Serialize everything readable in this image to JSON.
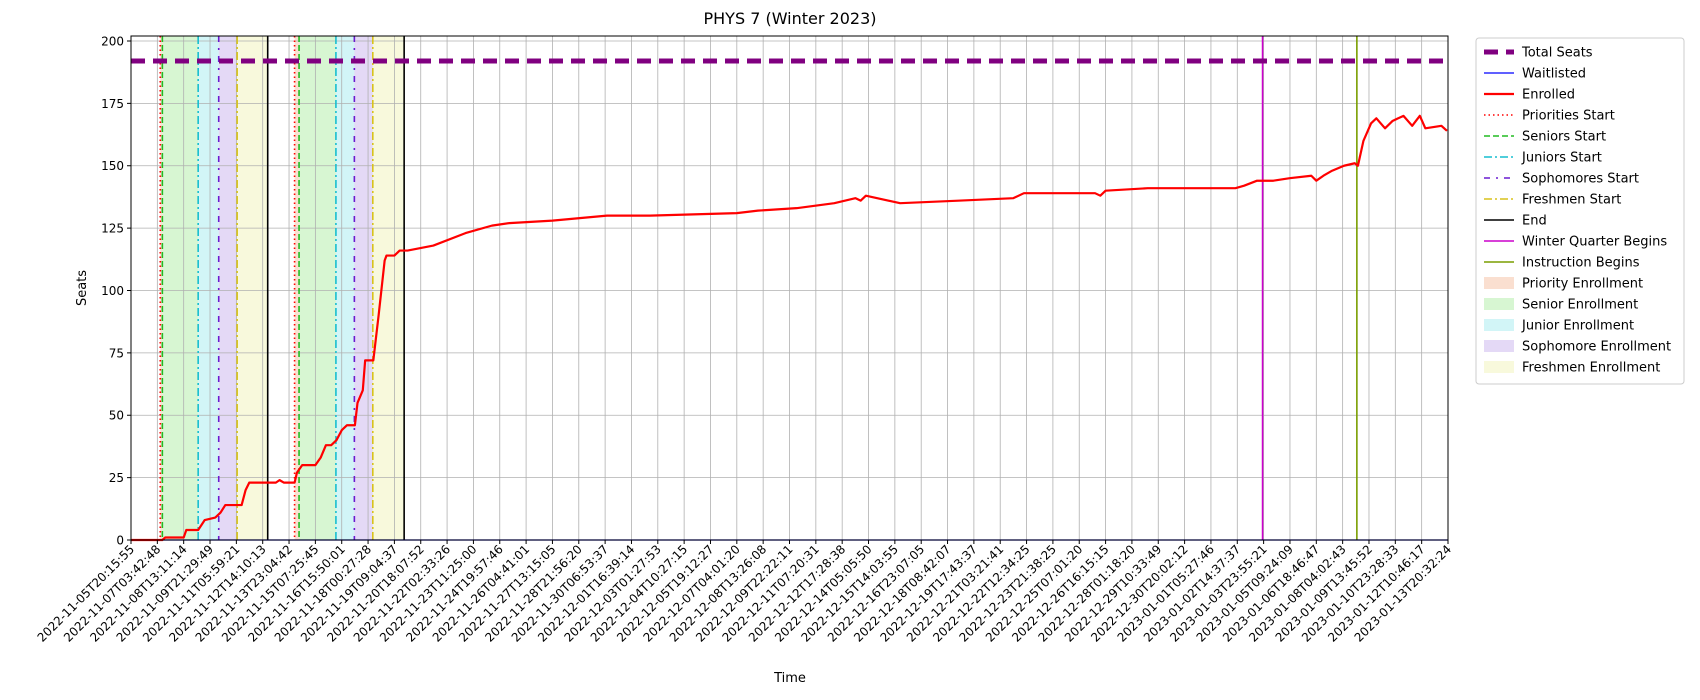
{
  "chart_data": {
    "type": "line",
    "title": "PHYS 7 (Winter 2023)",
    "x_label": "Time",
    "y_label": "Seats",
    "xlim": [
      0,
      50
    ],
    "ylim": [
      0,
      202
    ],
    "grid": true,
    "legend": "outside-upper-right",
    "yticks": [
      0,
      25,
      50,
      75,
      100,
      125,
      150,
      175,
      200
    ],
    "xticks": [
      {
        "value": 0,
        "label": "2022-11-05T20:15:55"
      },
      {
        "value": 1,
        "label": "2022-11-07T03:42:48"
      },
      {
        "value": 2,
        "label": "2022-11-08T13:11:14"
      },
      {
        "value": 3,
        "label": "2022-11-09T21:29:49"
      },
      {
        "value": 4,
        "label": "2022-11-11T05:59:21"
      },
      {
        "value": 5,
        "label": "2022-11-12T14:10:13"
      },
      {
        "value": 6,
        "label": "2022-11-13T23:04:42"
      },
      {
        "value": 7,
        "label": "2022-11-15T07:25:45"
      },
      {
        "value": 8,
        "label": "2022-11-16T15:50:01"
      },
      {
        "value": 9,
        "label": "2022-11-18T00:27:28"
      },
      {
        "value": 10,
        "label": "2022-11-19T09:04:37"
      },
      {
        "value": 11,
        "label": "2022-11-20T18:07:52"
      },
      {
        "value": 12,
        "label": "2022-11-22T02:33:26"
      },
      {
        "value": 13,
        "label": "2022-11-23T11:25:00"
      },
      {
        "value": 14,
        "label": "2022-11-24T19:57:46"
      },
      {
        "value": 15,
        "label": "2022-11-26T04:41:01"
      },
      {
        "value": 16,
        "label": "2022-11-27T13:15:05"
      },
      {
        "value": 17,
        "label": "2022-11-28T21:56:20"
      },
      {
        "value": 18,
        "label": "2022-11-30T06:53:37"
      },
      {
        "value": 19,
        "label": "2022-12-01T16:39:14"
      },
      {
        "value": 20,
        "label": "2022-12-03T01:27:53"
      },
      {
        "value": 21,
        "label": "2022-12-04T10:27:15"
      },
      {
        "value": 22,
        "label": "2022-12-05T19:12:27"
      },
      {
        "value": 23,
        "label": "2022-12-07T04:01:20"
      },
      {
        "value": 24,
        "label": "2022-12-08T13:26:08"
      },
      {
        "value": 25,
        "label": "2022-12-09T22:22:11"
      },
      {
        "value": 26,
        "label": "2022-12-11T07:20:31"
      },
      {
        "value": 27,
        "label": "2022-12-12T17:28:38"
      },
      {
        "value": 28,
        "label": "2022-12-14T05:05:50"
      },
      {
        "value": 29,
        "label": "2022-12-15T14:03:55"
      },
      {
        "value": 30,
        "label": "2022-12-16T23:07:05"
      },
      {
        "value": 31,
        "label": "2022-12-18T08:42:07"
      },
      {
        "value": 32,
        "label": "2022-12-19T17:43:37"
      },
      {
        "value": 33,
        "label": "2022-12-21T03:21:41"
      },
      {
        "value": 34,
        "label": "2022-12-22T12:34:25"
      },
      {
        "value": 35,
        "label": "2022-12-23T21:38:25"
      },
      {
        "value": 36,
        "label": "2022-12-25T07:01:20"
      },
      {
        "value": 37,
        "label": "2022-12-26T16:15:15"
      },
      {
        "value": 38,
        "label": "2022-12-28T01:18:20"
      },
      {
        "value": 39,
        "label": "2022-12-29T10:33:49"
      },
      {
        "value": 40,
        "label": "2022-12-30T20:02:12"
      },
      {
        "value": 41,
        "label": "2023-01-01T05:27:46"
      },
      {
        "value": 42,
        "label": "2023-01-02T14:37:37"
      },
      {
        "value": 43,
        "label": "2023-01-03T23:55:21"
      },
      {
        "value": 44,
        "label": "2023-01-05T09:24:09"
      },
      {
        "value": 45,
        "label": "2023-01-06T18:46:47"
      },
      {
        "value": 46,
        "label": "2023-01-08T04:02:43"
      },
      {
        "value": 47,
        "label": "2023-01-09T13:45:52"
      },
      {
        "value": 48,
        "label": "2023-01-10T23:28:33"
      },
      {
        "value": 49,
        "label": "2023-01-12T10:46:17"
      },
      {
        "value": 50,
        "label": "2023-01-13T20:32:24"
      }
    ],
    "series": [
      {
        "name": "Total Seats",
        "color": "#800080",
        "width": 5,
        "dash": "14,8",
        "x": [
          0,
          50
        ],
        "values": [
          192,
          192
        ]
      },
      {
        "name": "Waitlisted",
        "color": "#0000ff",
        "width": 1.2,
        "x": [
          0,
          50
        ],
        "values": [
          0,
          0
        ]
      },
      {
        "name": "Enrolled",
        "color": "#ff0000",
        "width": 2.2,
        "x": [
          0,
          1.19,
          1.3,
          2.0,
          2.1,
          2.55,
          2.8,
          3.2,
          3.4,
          3.58,
          4.2,
          4.35,
          4.49,
          5.5,
          5.64,
          5.8,
          6.21,
          6.3,
          6.5,
          7.0,
          7.2,
          7.4,
          7.6,
          7.8,
          8.0,
          8.2,
          8.5,
          8.6,
          8.8,
          8.89,
          9.2,
          9.4,
          9.63,
          9.7,
          10.0,
          10.2,
          10.5,
          11.48,
          12.7,
          13.7,
          14.36,
          16.0,
          18.07,
          19.7,
          23.0,
          23.8,
          25.27,
          26.7,
          27.5,
          27.7,
          27.9,
          29.2,
          31.4,
          33.5,
          33.9,
          36.6,
          36.8,
          37.0,
          38.6,
          41.93,
          42.26,
          42.75,
          43.37,
          43.99,
          44.81,
          45.0,
          45.27,
          45.6,
          46.05,
          46.46,
          46.58,
          46.79,
          47.08,
          47.28,
          47.61,
          47.9,
          48.31,
          48.64,
          48.93,
          49.14,
          49.75,
          49.96
        ],
        "values": [
          0,
          0,
          1,
          1,
          4,
          4,
          8,
          9,
          11,
          14,
          14,
          20,
          23,
          23,
          24,
          23,
          23,
          27,
          30,
          30,
          33,
          38,
          38,
          40,
          44,
          46,
          46,
          55,
          60,
          72,
          72,
          90,
          112,
          114,
          114,
          116,
          116,
          118,
          123,
          126,
          127,
          128,
          130,
          130,
          131,
          132,
          133,
          135,
          137,
          136,
          138,
          135,
          136,
          137,
          139,
          139,
          138,
          140,
          141,
          141,
          142,
          144,
          144,
          145,
          146,
          144,
          146,
          148,
          150,
          151,
          150,
          160,
          167,
          169,
          165,
          168,
          170,
          166,
          170,
          165,
          166,
          164
        ]
      }
    ],
    "vlines": [
      {
        "name": "Priorities Start",
        "color": "#ff0000",
        "dash": "1.5,3",
        "x": [
          1.11,
          6.21
        ]
      },
      {
        "name": "Seniors Start",
        "color": "#22bb22",
        "dash": "6,3",
        "x": [
          1.19,
          6.38
        ]
      },
      {
        "name": "Juniors Start",
        "color": "#17becf",
        "dash": "8,3,2,3",
        "x": [
          2.55,
          7.78
        ]
      },
      {
        "name": "Sophomores Start",
        "color": "#6a1bd0",
        "dash": "6,6,2,6",
        "x": [
          3.33,
          8.48
        ]
      },
      {
        "name": "Freshmen Start",
        "color": "#d8c21b",
        "dash": "8,3,2,3",
        "x": [
          4.03,
          9.18
        ]
      },
      {
        "name": "End",
        "color": "#000000",
        "x": [
          5.19,
          10.37
        ]
      },
      {
        "name": "Winter Quarter Begins",
        "color": "#cc00cc",
        "x": [
          42.96
        ]
      },
      {
        "name": "Instruction Begins",
        "color": "#7a9e00",
        "x": [
          46.54
        ]
      }
    ],
    "spans": [
      {
        "name": "Priority Enrollment",
        "color": "#f2b08a",
        "ranges": [
          [
            1.11,
            1.19
          ],
          [
            6.21,
            6.38
          ]
        ]
      },
      {
        "name": "Senior Enrollment",
        "color": "#9be88f",
        "ranges": [
          [
            1.19,
            2.55
          ],
          [
            6.38,
            7.78
          ]
        ]
      },
      {
        "name": "Junior Enrollment",
        "color": "#8fe6ec",
        "ranges": [
          [
            2.55,
            3.33
          ],
          [
            7.78,
            8.48
          ]
        ]
      },
      {
        "name": "Sophomore Enrollment",
        "color": "#bb9fe8",
        "ranges": [
          [
            3.33,
            4.03
          ],
          [
            8.48,
            9.18
          ]
        ]
      },
      {
        "name": "Freshmen Enrollment",
        "color": "#eef0a8",
        "ranges": [
          [
            4.03,
            5.19
          ],
          [
            9.18,
            10.37
          ]
        ]
      }
    ]
  }
}
